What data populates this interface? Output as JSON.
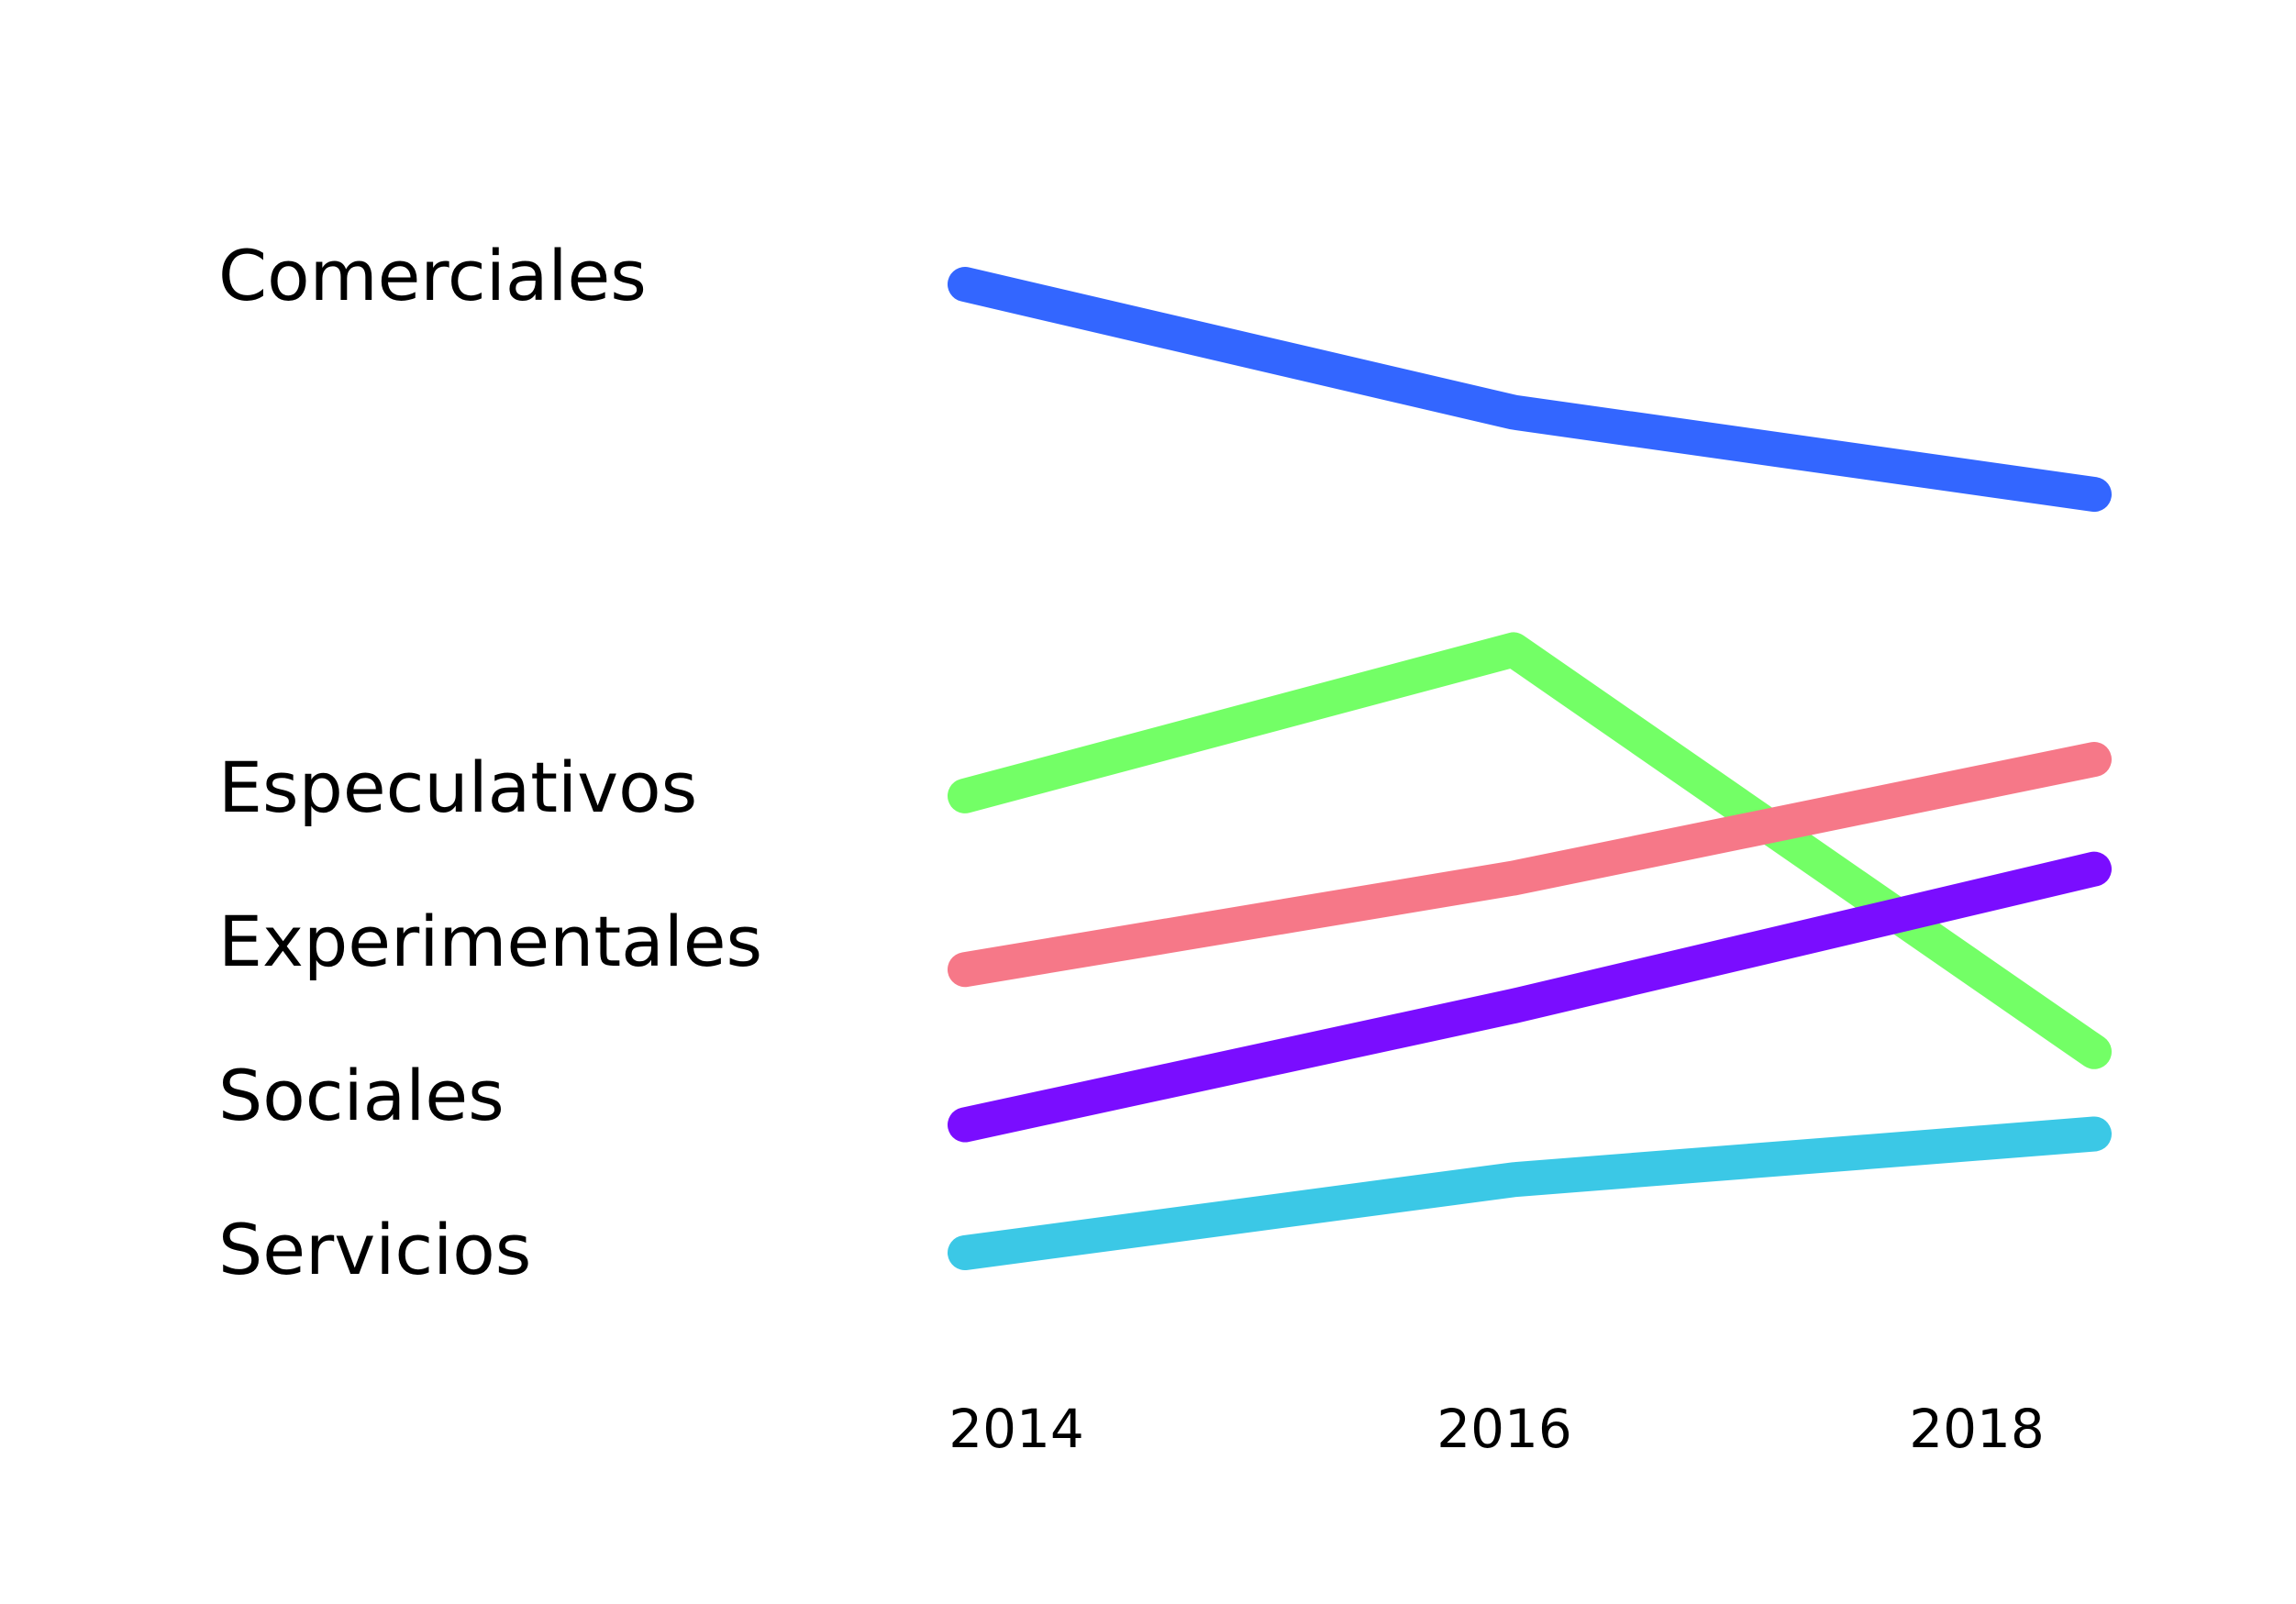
{
  "chart_data": {
    "type": "line",
    "title": "",
    "xlabel": "",
    "ylabel": "",
    "x": [
      "2014",
      "2016",
      "2018"
    ],
    "ylim": [
      0,
      100
    ],
    "grid": false,
    "legend": "left",
    "series": [
      {
        "name": "Comerciales",
        "color": "#3366ff",
        "values": [
          96,
          82,
          73
        ]
      },
      {
        "name": "Especulativos",
        "color": "#73ff66",
        "values": [
          40,
          56,
          12
        ]
      },
      {
        "name": "Experimentales",
        "color": "#f67888",
        "values": [
          21,
          31,
          44
        ]
      },
      {
        "name": "Sociales",
        "color": "#7a0dff",
        "values": [
          4,
          17,
          32
        ]
      },
      {
        "name": "Servicios",
        "color": "#3bc8e6",
        "values": [
          -10,
          -2,
          3
        ]
      }
    ]
  }
}
